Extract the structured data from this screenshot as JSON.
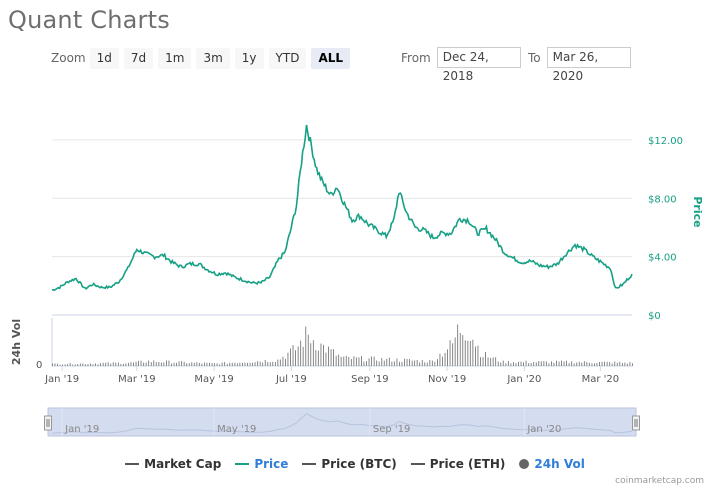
{
  "title": "Quant Charts",
  "zoom": {
    "label": "Zoom",
    "buttons": [
      "1d",
      "7d",
      "1m",
      "3m",
      "1y",
      "YTD",
      "ALL"
    ],
    "active": "ALL"
  },
  "range": {
    "from_label": "From",
    "from_value": "Dec 24, 2018",
    "to_label": "To",
    "to_value": "Mar 26, 2020"
  },
  "legend": [
    {
      "label": "Market Cap",
      "color": "#555555",
      "kind": "line"
    },
    {
      "label": "Price",
      "color": "#16a085",
      "kind": "line",
      "text_color": "#2f7ed8"
    },
    {
      "label": "Price (BTC)",
      "color": "#555555",
      "kind": "line"
    },
    {
      "label": "Price (ETH)",
      "color": "#555555",
      "kind": "line"
    },
    {
      "label": "24h Vol",
      "color": "#666666",
      "kind": "dot",
      "text_color": "#2f7ed8"
    }
  ],
  "credit": "coinmarketcap.com",
  "colors": {
    "price": "#16a085",
    "volume": "#7a7a7a",
    "navigator_fill": "#d4dcef",
    "grid": "#e6e6e6"
  },
  "chart_data": {
    "type": "line",
    "title": "",
    "ylabel": "Price",
    "y_axis_ticks": [
      "$12.00",
      "$8.00",
      "$4.00",
      "$0"
    ],
    "y_ticks_values": [
      12,
      8,
      4,
      0
    ],
    "ylim": [
      0,
      13.5
    ],
    "volume_axis": {
      "label": "24h Vol",
      "tick": "0"
    },
    "x_tick_labels": [
      "Jan '19",
      "Mar '19",
      "May '19",
      "Jul '19",
      "Sep '19",
      "Nov '19",
      "Jan '20",
      "Mar '20"
    ],
    "navigator_labels": [
      "Jan '19",
      "May '19",
      "Sep '19",
      "Jan '20"
    ],
    "x_start": "2018-12-24",
    "x_end": "2020-03-26",
    "series": [
      {
        "name": "Price",
        "points": [
          [
            "2018-12-24",
            1.7
          ],
          [
            "2018-12-30",
            1.9
          ],
          [
            "2019-01-06",
            2.3
          ],
          [
            "2019-01-12",
            2.5
          ],
          [
            "2019-01-19",
            1.8
          ],
          [
            "2019-01-25",
            2.1
          ],
          [
            "2019-02-01",
            1.9
          ],
          [
            "2019-02-08",
            1.9
          ],
          [
            "2019-02-15",
            2.3
          ],
          [
            "2019-02-22",
            3.2
          ],
          [
            "2019-03-01",
            4.5
          ],
          [
            "2019-03-08",
            4.2
          ],
          [
            "2019-03-15",
            4.0
          ],
          [
            "2019-03-22",
            4.1
          ],
          [
            "2019-03-29",
            3.6
          ],
          [
            "2019-04-05",
            3.3
          ],
          [
            "2019-04-12",
            3.5
          ],
          [
            "2019-04-19",
            3.5
          ],
          [
            "2019-04-26",
            3.1
          ],
          [
            "2019-05-03",
            2.8
          ],
          [
            "2019-05-10",
            2.9
          ],
          [
            "2019-05-17",
            2.6
          ],
          [
            "2019-05-24",
            2.4
          ],
          [
            "2019-05-31",
            2.2
          ],
          [
            "2019-06-07",
            2.2
          ],
          [
            "2019-06-14",
            2.6
          ],
          [
            "2019-06-21",
            3.8
          ],
          [
            "2019-06-26",
            4.3
          ],
          [
            "2019-07-01",
            6.0
          ],
          [
            "2019-07-05",
            7.5
          ],
          [
            "2019-07-09",
            10.5
          ],
          [
            "2019-07-13",
            13.0
          ],
          [
            "2019-07-17",
            11.5
          ],
          [
            "2019-07-21",
            10.0
          ],
          [
            "2019-07-25",
            9.2
          ],
          [
            "2019-08-01",
            8.2
          ],
          [
            "2019-08-06",
            8.8
          ],
          [
            "2019-08-12",
            7.6
          ],
          [
            "2019-08-18",
            6.5
          ],
          [
            "2019-08-24",
            6.8
          ],
          [
            "2019-08-31",
            6.2
          ],
          [
            "2019-09-07",
            5.8
          ],
          [
            "2019-09-14",
            5.4
          ],
          [
            "2019-09-20",
            6.5
          ],
          [
            "2019-09-24",
            8.5
          ],
          [
            "2019-09-30",
            7.0
          ],
          [
            "2019-10-07",
            6.0
          ],
          [
            "2019-10-14",
            5.8
          ],
          [
            "2019-10-21",
            5.3
          ],
          [
            "2019-10-28",
            5.6
          ],
          [
            "2019-11-04",
            5.6
          ],
          [
            "2019-11-11",
            6.6
          ],
          [
            "2019-11-18",
            6.5
          ],
          [
            "2019-11-25",
            5.6
          ],
          [
            "2019-12-02",
            5.9
          ],
          [
            "2019-12-09",
            5.2
          ],
          [
            "2019-12-16",
            4.3
          ],
          [
            "2019-12-23",
            3.9
          ],
          [
            "2019-12-30",
            3.6
          ],
          [
            "2020-01-06",
            3.7
          ],
          [
            "2020-01-13",
            3.4
          ],
          [
            "2020-01-20",
            3.3
          ],
          [
            "2020-01-27",
            3.5
          ],
          [
            "2020-02-03",
            4.2
          ],
          [
            "2020-02-10",
            4.8
          ],
          [
            "2020-02-17",
            4.5
          ],
          [
            "2020-02-24",
            4.0
          ],
          [
            "2020-03-02",
            3.6
          ],
          [
            "2020-03-09",
            3.2
          ],
          [
            "2020-03-13",
            1.8
          ],
          [
            "2020-03-19",
            2.1
          ],
          [
            "2020-03-26",
            2.8
          ]
        ]
      },
      {
        "name": "24h Vol",
        "relative_levels": [
          [
            "2018-12-24",
            0.05
          ],
          [
            "2019-02-25",
            0.08
          ],
          [
            "2019-03-10",
            0.12
          ],
          [
            "2019-05-01",
            0.06
          ],
          [
            "2019-06-20",
            0.15
          ],
          [
            "2019-07-05",
            0.45
          ],
          [
            "2019-07-13",
            0.8
          ],
          [
            "2019-07-22",
            0.55
          ],
          [
            "2019-08-10",
            0.2
          ],
          [
            "2019-09-24",
            0.15
          ],
          [
            "2019-10-20",
            0.12
          ],
          [
            "2019-11-05",
            0.55
          ],
          [
            "2019-11-10",
            0.95
          ],
          [
            "2019-11-18",
            0.9
          ],
          [
            "2019-11-28",
            0.3
          ],
          [
            "2019-12-15",
            0.1
          ],
          [
            "2020-02-10",
            0.1
          ],
          [
            "2020-03-26",
            0.08
          ]
        ]
      }
    ]
  }
}
